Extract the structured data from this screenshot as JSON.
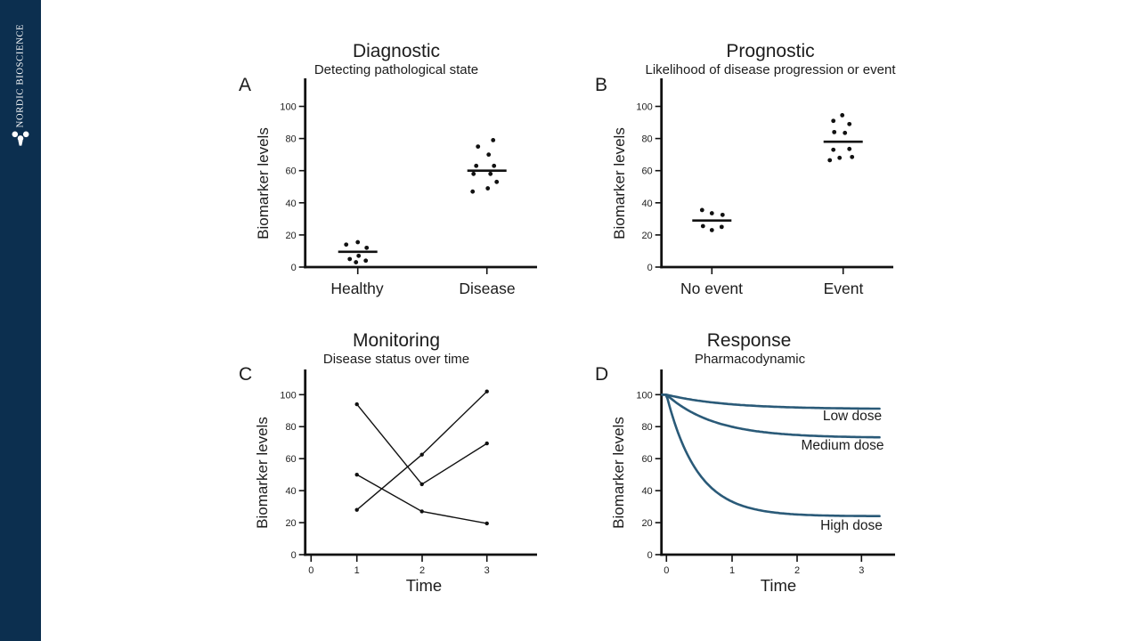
{
  "sidebar": {
    "brand": "NORDIC BIOSCIENCE",
    "logo": "molecule-icon",
    "bg_color": "#0c2f4f"
  },
  "chart_data": [
    {
      "panel": "A",
      "type": "scatter",
      "title": "Diagnostic",
      "subtitle": "Detecting pathological state",
      "ylabel": "Biomarker levels",
      "ylim": [
        0,
        100
      ],
      "yticks": [
        0,
        20,
        40,
        60,
        80,
        100
      ],
      "groups": [
        {
          "label": "Healthy",
          "mean": 9.5,
          "points": [
            14,
            15.5,
            12,
            5,
            7,
            3,
            4
          ],
          "jitter": [
            -13,
            0,
            10,
            -9,
            1,
            -2,
            9
          ]
        },
        {
          "label": "Disease",
          "mean": 60,
          "points": [
            79,
            75,
            70,
            63,
            63,
            58,
            58,
            53,
            49,
            47
          ],
          "jitter": [
            7,
            -10,
            2,
            -12,
            8,
            -15,
            4,
            11,
            1,
            -16
          ]
        }
      ]
    },
    {
      "panel": "B",
      "type": "scatter",
      "title": "Prognostic",
      "subtitle": "Likelihood of disease progression or event",
      "ylabel": "Biomarker levels",
      "ylim": [
        0,
        100
      ],
      "yticks": [
        0,
        20,
        40,
        60,
        80,
        100
      ],
      "groups": [
        {
          "label": "No event",
          "mean": 29,
          "points": [
            35.5,
            33.5,
            32.5,
            25.5,
            23,
            25
          ],
          "jitter": [
            -11,
            0,
            12,
            -10,
            0,
            11
          ]
        },
        {
          "label": "Event",
          "mean": 78,
          "points": [
            94.5,
            91,
            89,
            84,
            83.5,
            73,
            73.5,
            66.5,
            68,
            68.5
          ],
          "jitter": [
            -1,
            -11,
            7,
            -10,
            2,
            -11,
            7,
            -15,
            -4,
            10
          ]
        }
      ]
    },
    {
      "panel": "C",
      "type": "line",
      "title": "Monitoring",
      "subtitle": "Disease status over time",
      "ylabel": "Biomarker levels",
      "xlabel": "Time",
      "ylim": [
        0,
        100
      ],
      "yticks": [
        0,
        20,
        40,
        60,
        80,
        100
      ],
      "xticks": [
        0,
        1,
        2,
        3
      ],
      "series": [
        {
          "x": [
            1,
            2,
            3
          ],
          "y": [
            94,
            44,
            69.5
          ]
        },
        {
          "x": [
            1,
            2,
            3
          ],
          "y": [
            28,
            62.5,
            102
          ]
        },
        {
          "x": [
            1,
            2,
            3
          ],
          "y": [
            50,
            27,
            19.5
          ]
        }
      ]
    },
    {
      "panel": "D",
      "type": "curves",
      "title": "Response",
      "subtitle": "Pharmacodynamic",
      "ylabel": "Biomarker levels",
      "xlabel": "Time",
      "ylim": [
        0,
        100
      ],
      "yticks": [
        0,
        20,
        40,
        60,
        80,
        100
      ],
      "xticks": [
        0,
        1,
        2,
        3
      ],
      "curve_color": "#2a5a78",
      "curves": [
        {
          "label": "Low dose",
          "start": 100,
          "plateau": 91,
          "rate": 1.1
        },
        {
          "label": "Medium dose",
          "start": 100,
          "plateau": 73,
          "rate": 1.35
        },
        {
          "label": "High dose",
          "start": 100,
          "plateau": 24,
          "rate": 2.1
        }
      ]
    }
  ]
}
